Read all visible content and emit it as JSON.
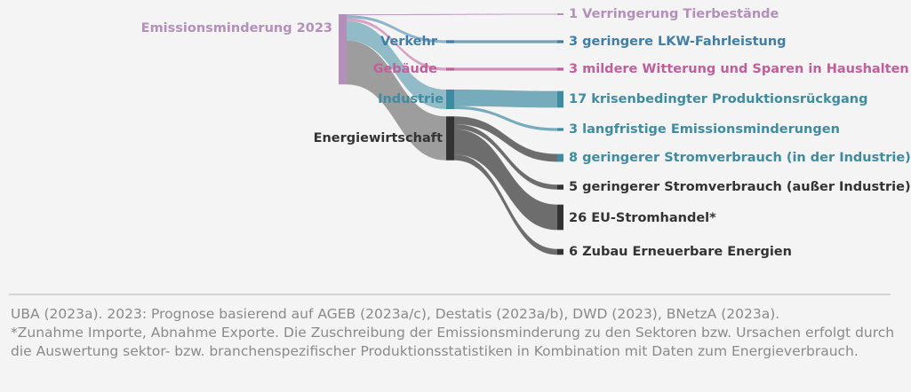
{
  "source": {
    "label": "Emissionsminderung 2023",
    "color": "#b48fbb"
  },
  "sectors": [
    {
      "id": "verkehr",
      "label": "Verkehr",
      "color": "#3f7ea9"
    },
    {
      "id": "gebaeude",
      "label": "Gebäude",
      "color": "#c05f9a"
    },
    {
      "id": "industrie",
      "label": "Industrie",
      "color": "#3e8ca3"
    },
    {
      "id": "energie",
      "label": "Energiewirtschaft",
      "color": "#555555"
    }
  ],
  "targets": [
    {
      "label": "1 Verringerung Tierbestände",
      "value": 1,
      "color": "#b48fbb",
      "from": "source"
    },
    {
      "label": "3 geringere LKW-Fahrleistung",
      "value": 3,
      "color": "#3f7ea9",
      "from": "verkehr"
    },
    {
      "label": "3 mildere Witterung und Sparen in Haushalten",
      "value": 3,
      "color": "#c05f9a",
      "from": "gebaeude"
    },
    {
      "label": "17 krisenbedingter Produktionsrückgang",
      "value": 17,
      "color": "#3e8ca3",
      "from": "industrie"
    },
    {
      "label": "3 langfristige Emissionsminderungen",
      "value": 3,
      "color": "#3e8ca3",
      "from": "industrie"
    },
    {
      "label": "8 geringerer Stromverbrauch (in der Industrie)",
      "value": 8,
      "color": "#3e8ca3",
      "from": "energie"
    },
    {
      "label": "5 geringerer Stromverbrauch (außer Industrie)",
      "value": 5,
      "color": "#333333",
      "from": "energie"
    },
    {
      "label": "26 EU-Stromhandel*",
      "value": 26,
      "color": "#333333",
      "from": "energie"
    },
    {
      "label": "6 Zubau Erneuerbare Energien",
      "value": 6,
      "color": "#333333",
      "from": "energie"
    }
  ],
  "footer": {
    "line1": "UBA (2023a). 2023: Prognose basierend auf AGEB (2023a/c), Destatis (2023a/b), DWD (2023), BNetzA (2023a).",
    "line2": "*Zunahme Importe, Abnahme Exporte. Die Zuschreibung der Emissionsminderung zu den Sektoren bzw. Ursachen erfolgt durch die Auswertung sektor- bzw. branchenspezifischer Produktionsstatistiken in Kombination mit Daten zum Energieverbrauch."
  }
}
